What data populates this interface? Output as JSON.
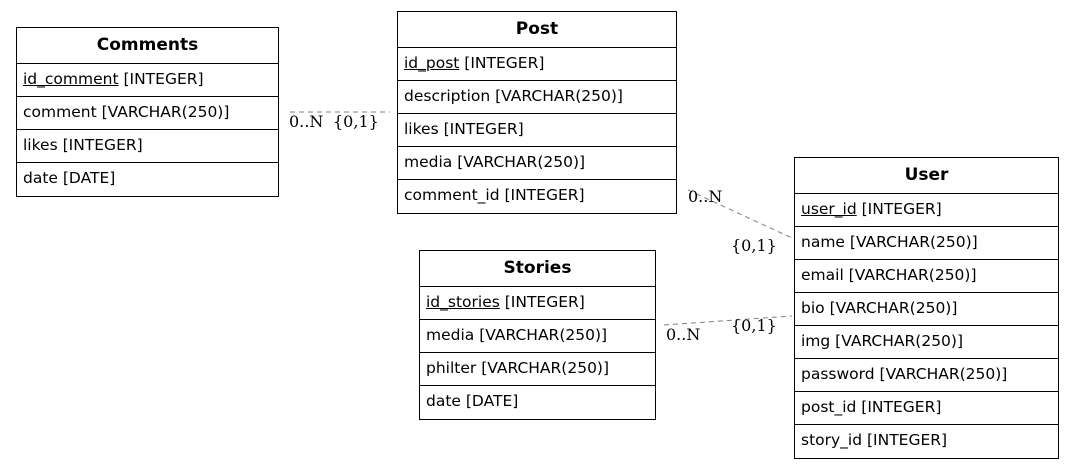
{
  "entities": {
    "comments": {
      "title": "Comments",
      "attributes": [
        {
          "name": "id_comment",
          "type": " [INTEGER]",
          "pk": true
        },
        {
          "name": "comment",
          "type": " [VARCHAR(250)]",
          "pk": false
        },
        {
          "name": "likes",
          "type": " [INTEGER]",
          "pk": false
        },
        {
          "name": "date",
          "type": " [DATE]",
          "pk": false
        }
      ]
    },
    "post": {
      "title": "Post",
      "attributes": [
        {
          "name": "id_post",
          "type": " [INTEGER]",
          "pk": true
        },
        {
          "name": "description",
          "type": " [VARCHAR(250)]",
          "pk": false
        },
        {
          "name": "likes",
          "type": " [INTEGER]",
          "pk": false
        },
        {
          "name": "media",
          "type": " [VARCHAR(250)]",
          "pk": false
        },
        {
          "name": "comment_id",
          "type": " [INTEGER]",
          "pk": false
        }
      ]
    },
    "stories": {
      "title": "Stories",
      "attributes": [
        {
          "name": "id_stories",
          "type": " [INTEGER]",
          "pk": true
        },
        {
          "name": "media",
          "type": " [VARCHAR(250)]",
          "pk": false
        },
        {
          "name": "philter",
          "type": " [VARCHAR(250)]",
          "pk": false
        },
        {
          "name": "date",
          "type": " [DATE]",
          "pk": false
        }
      ]
    },
    "user": {
      "title": "User",
      "attributes": [
        {
          "name": "user_id",
          "type": " [INTEGER]",
          "pk": true
        },
        {
          "name": "name",
          "type": " [VARCHAR(250)]",
          "pk": false
        },
        {
          "name": "email",
          "type": " [VARCHAR(250)]",
          "pk": false
        },
        {
          "name": "bio",
          "type": " [VARCHAR(250)]",
          "pk": false
        },
        {
          "name": "img",
          "type": " [VARCHAR(250)]",
          "pk": false
        },
        {
          "name": "password",
          "type": " [VARCHAR(250)]",
          "pk": false
        },
        {
          "name": "post_id",
          "type": " [INTEGER]",
          "pk": false
        },
        {
          "name": "story_id",
          "type": " [INTEGER]",
          "pk": false
        }
      ]
    }
  },
  "relationships": {
    "comments_post": {
      "from_card": "0..N",
      "to_card": "{0,1}"
    },
    "post_user": {
      "from_card": "0..N",
      "to_card": "{0,1}"
    },
    "stories_user": {
      "from_card": "0..N",
      "to_card": "{0,1}"
    }
  },
  "colors": {
    "border": "#000000",
    "relationship_line": "#808080"
  }
}
